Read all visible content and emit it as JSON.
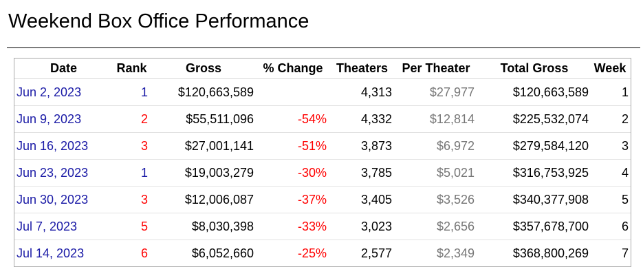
{
  "page": {
    "title": "Weekend Box Office Performance"
  },
  "table": {
    "headers": {
      "date": "Date",
      "rank": "Rank",
      "gross": "Gross",
      "change": "% Change",
      "theaters": "Theaters",
      "per_theater": "Per Theater",
      "total_gross": "Total Gross",
      "week": "Week"
    },
    "rows": [
      {
        "date": "Jun 2, 2023",
        "rank": "1",
        "gross": "$120,663,589",
        "change": "",
        "theaters": "4,313",
        "per_theater": "$27,977",
        "total_gross": "$120,663,589",
        "week": "1"
      },
      {
        "date": "Jun 9, 2023",
        "rank": "2",
        "gross": "$55,511,096",
        "change": "-54%",
        "theaters": "4,332",
        "per_theater": "$12,814",
        "total_gross": "$225,532,074",
        "week": "2"
      },
      {
        "date": "Jun 16, 2023",
        "rank": "3",
        "gross": "$27,001,141",
        "change": "-51%",
        "theaters": "3,873",
        "per_theater": "$6,972",
        "total_gross": "$279,584,120",
        "week": "3"
      },
      {
        "date": "Jun 23, 2023",
        "rank": "1",
        "gross": "$19,003,279",
        "change": "-30%",
        "theaters": "3,785",
        "per_theater": "$5,021",
        "total_gross": "$316,753,925",
        "week": "4"
      },
      {
        "date": "Jun 30, 2023",
        "rank": "3",
        "gross": "$12,006,087",
        "change": "-37%",
        "theaters": "3,405",
        "per_theater": "$3,526",
        "total_gross": "$340,377,908",
        "week": "5"
      },
      {
        "date": "Jul 7, 2023",
        "rank": "5",
        "gross": "$8,030,398",
        "change": "-33%",
        "theaters": "3,023",
        "per_theater": "$2,656",
        "total_gross": "$357,678,700",
        "week": "6"
      },
      {
        "date": "Jul 14, 2023",
        "rank": "6",
        "gross": "$6,052,660",
        "change": "-25%",
        "theaters": "2,577",
        "per_theater": "$2,349",
        "total_gross": "$368,800,269",
        "week": "7"
      }
    ]
  },
  "colors": {
    "date_link": "#1a1aa6",
    "rank_top": "#1a1aa6",
    "rank_other": "#ff0000",
    "change": "#ff0000",
    "per_theater": "#777777",
    "border": "#a8a8a8"
  }
}
